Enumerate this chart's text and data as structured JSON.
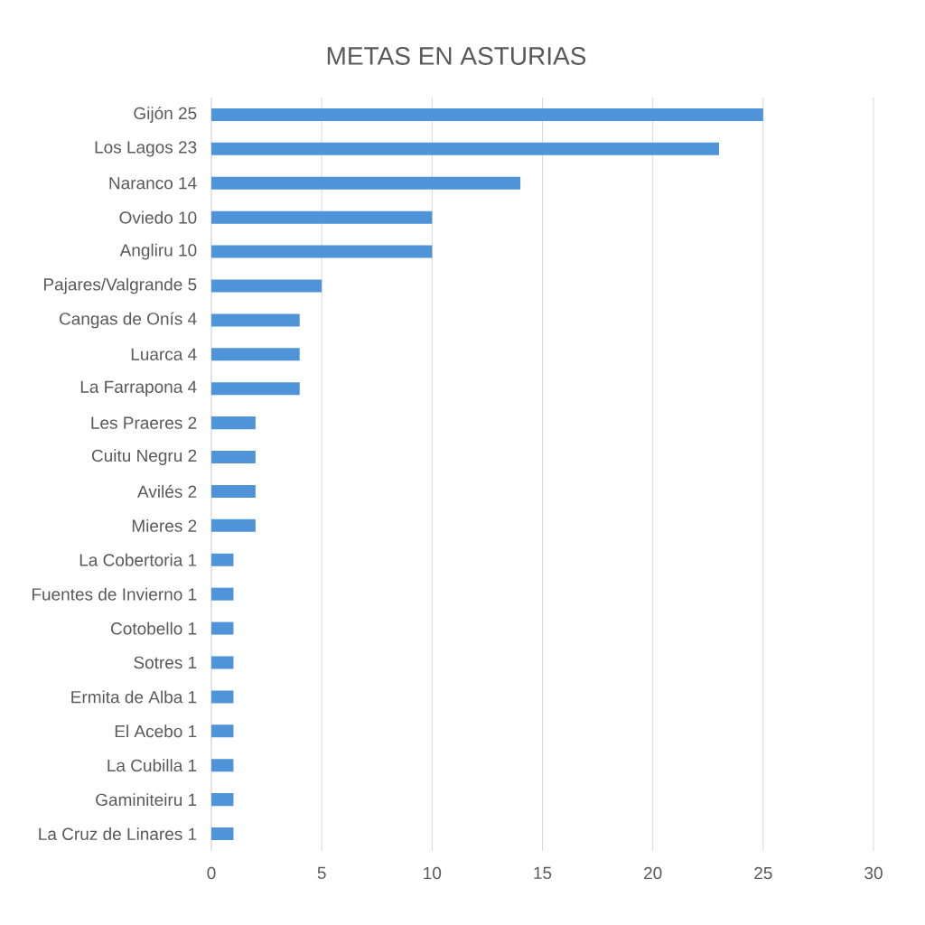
{
  "chart_data": {
    "type": "bar",
    "orientation": "horizontal",
    "title": "METAS EN ASTURIAS",
    "categories": [
      "Gijón 25",
      "Los Lagos 23",
      "Naranco 14",
      "Oviedo 10",
      "Angliru 10",
      "Pajares/Valgrande 5",
      "Cangas de Onís 4",
      "Luarca 4",
      "La Farrapona 4",
      "Les Praeres 2",
      "Cuitu Negru 2",
      "Avilés 2",
      "Mieres 2",
      "La Cobertoria 1",
      "Fuentes de Invierno 1",
      "Cotobello 1",
      "Sotres 1",
      "Ermita de Alba 1",
      "El Acebo 1",
      "La Cubilla 1",
      "Gaminiteiru 1",
      "La Cruz de Linares 1"
    ],
    "values": [
      25,
      23,
      14,
      10,
      10,
      5,
      4,
      4,
      4,
      2,
      2,
      2,
      2,
      1,
      1,
      1,
      1,
      1,
      1,
      1,
      1,
      1
    ],
    "color": "#4f94d9",
    "xlim": [
      0,
      30
    ],
    "xticks": [
      0,
      5,
      10,
      15,
      20,
      25,
      30
    ],
    "grid": "x"
  }
}
